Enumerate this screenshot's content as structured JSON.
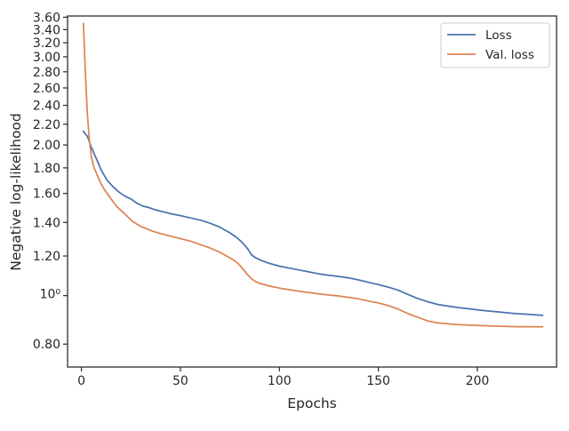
{
  "chart_data": {
    "type": "line",
    "xlabel": "Epochs",
    "ylabel": "Negative log-likelihood",
    "y_scale": "log",
    "xlim": [
      -7,
      240
    ],
    "ylim": [
      0.72,
      3.62
    ],
    "x_ticks": [
      0,
      50,
      100,
      150,
      200
    ],
    "x_tick_labels": [
      "0",
      "50",
      "100",
      "150",
      "200"
    ],
    "y_ticks": [
      0.8,
      1.0,
      1.2,
      1.4,
      1.6,
      1.8,
      2.0,
      2.2,
      2.4,
      2.6,
      2.8,
      3.0,
      3.2,
      3.4,
      3.6
    ],
    "y_tick_labels": [
      "0.80",
      "10⁰",
      "1.20",
      "1.40",
      "1.60",
      "1.80",
      "2.00",
      "2.20",
      "2.40",
      "2.60",
      "2.80",
      "3.00",
      "3.20",
      "3.40",
      "3.60"
    ],
    "legend_position": "top-right",
    "series": [
      {
        "name": "Loss",
        "color": "#4c72b0",
        "points": [
          [
            1,
            2.13
          ],
          [
            3,
            2.08
          ],
          [
            5,
            1.98
          ],
          [
            8,
            1.86
          ],
          [
            10,
            1.78
          ],
          [
            13,
            1.7
          ],
          [
            16,
            1.65
          ],
          [
            19,
            1.61
          ],
          [
            22,
            1.58
          ],
          [
            25,
            1.56
          ],
          [
            28,
            1.53
          ],
          [
            31,
            1.51
          ],
          [
            34,
            1.5
          ],
          [
            37,
            1.485
          ],
          [
            40,
            1.475
          ],
          [
            43,
            1.465
          ],
          [
            46,
            1.455
          ],
          [
            50,
            1.445
          ],
          [
            55,
            1.43
          ],
          [
            60,
            1.415
          ],
          [
            65,
            1.395
          ],
          [
            70,
            1.37
          ],
          [
            75,
            1.335
          ],
          [
            78,
            1.31
          ],
          [
            81,
            1.28
          ],
          [
            84,
            1.24
          ],
          [
            86,
            1.205
          ],
          [
            88,
            1.19
          ],
          [
            91,
            1.175
          ],
          [
            95,
            1.16
          ],
          [
            100,
            1.145
          ],
          [
            105,
            1.135
          ],
          [
            110,
            1.125
          ],
          [
            115,
            1.115
          ],
          [
            120,
            1.105
          ],
          [
            125,
            1.098
          ],
          [
            130,
            1.092
          ],
          [
            135,
            1.085
          ],
          [
            140,
            1.075
          ],
          [
            145,
            1.063
          ],
          [
            150,
            1.052
          ],
          [
            155,
            1.04
          ],
          [
            160,
            1.025
          ],
          [
            165,
            1.005
          ],
          [
            170,
            0.987
          ],
          [
            175,
            0.972
          ],
          [
            180,
            0.96
          ],
          [
            185,
            0.953
          ],
          [
            190,
            0.947
          ],
          [
            195,
            0.942
          ],
          [
            200,
            0.937
          ],
          [
            205,
            0.932
          ],
          [
            210,
            0.928
          ],
          [
            215,
            0.924
          ],
          [
            220,
            0.92
          ],
          [
            225,
            0.918
          ],
          [
            230,
            0.915
          ],
          [
            233,
            0.913
          ]
        ]
      },
      {
        "name": "Val. loss",
        "color": "#dd8452",
        "points": [
          [
            1,
            3.5
          ],
          [
            2,
            2.8
          ],
          [
            3,
            2.3
          ],
          [
            4,
            2.05
          ],
          [
            5,
            1.9
          ],
          [
            6,
            1.82
          ],
          [
            8,
            1.74
          ],
          [
            10,
            1.67
          ],
          [
            12,
            1.62
          ],
          [
            14,
            1.58
          ],
          [
            16,
            1.54
          ],
          [
            18,
            1.505
          ],
          [
            20,
            1.48
          ],
          [
            22,
            1.455
          ],
          [
            24,
            1.43
          ],
          [
            26,
            1.405
          ],
          [
            28,
            1.39
          ],
          [
            30,
            1.375
          ],
          [
            33,
            1.36
          ],
          [
            36,
            1.345
          ],
          [
            40,
            1.33
          ],
          [
            45,
            1.315
          ],
          [
            50,
            1.3
          ],
          [
            55,
            1.285
          ],
          [
            60,
            1.265
          ],
          [
            65,
            1.245
          ],
          [
            70,
            1.22
          ],
          [
            75,
            1.19
          ],
          [
            78,
            1.17
          ],
          [
            80,
            1.15
          ],
          [
            82,
            1.125
          ],
          [
            84,
            1.1
          ],
          [
            86,
            1.08
          ],
          [
            88,
            1.067
          ],
          [
            90,
            1.058
          ],
          [
            95,
            1.045
          ],
          [
            100,
            1.035
          ],
          [
            110,
            1.02
          ],
          [
            120,
            1.008
          ],
          [
            130,
            0.998
          ],
          [
            140,
            0.985
          ],
          [
            145,
            0.975
          ],
          [
            150,
            0.967
          ],
          [
            155,
            0.955
          ],
          [
            160,
            0.94
          ],
          [
            165,
            0.92
          ],
          [
            170,
            0.905
          ],
          [
            175,
            0.89
          ],
          [
            180,
            0.882
          ],
          [
            190,
            0.875
          ],
          [
            200,
            0.872
          ],
          [
            210,
            0.869
          ],
          [
            220,
            0.867
          ],
          [
            233,
            0.866
          ]
        ]
      }
    ]
  }
}
